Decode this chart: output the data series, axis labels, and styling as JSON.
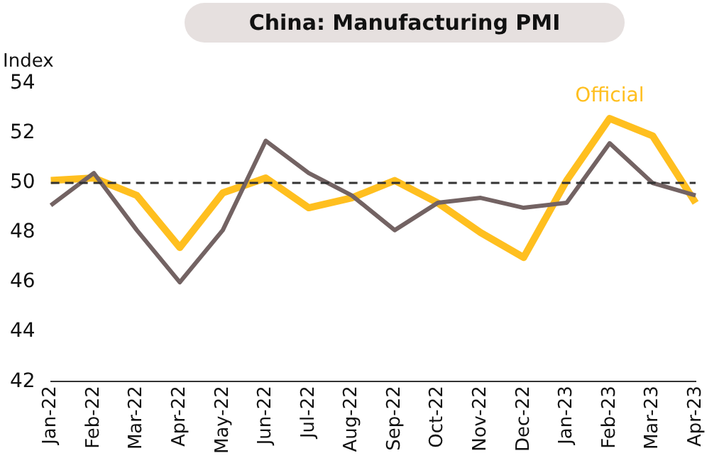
{
  "chart_data": {
    "type": "line",
    "title": "China: Manufacturing PMI",
    "ylabel": "Index",
    "categories": [
      "Jan-22",
      "Feb-22",
      "Mar-22",
      "Apr-22",
      "May-22",
      "Jun-22",
      "Jul-22",
      "Aug-22",
      "Sep-22",
      "Oct-22",
      "Nov-22",
      "Dec-22",
      "Jan-23",
      "Feb-23",
      "Mar-23",
      "Apr-23"
    ],
    "series": [
      {
        "name": "Official",
        "color": "#ffbf1f",
        "values": [
          50.1,
          50.2,
          49.5,
          47.4,
          49.6,
          50.2,
          49.0,
          49.4,
          50.1,
          49.2,
          48.0,
          47.0,
          50.1,
          52.6,
          51.9,
          49.2
        ]
      },
      {
        "color": "#736363",
        "values": [
          49.1,
          50.4,
          48.1,
          46.0,
          48.1,
          51.7,
          50.4,
          49.5,
          48.1,
          49.2,
          49.4,
          49.0,
          49.2,
          51.6,
          50.0,
          49.5
        ]
      }
    ],
    "ylim": [
      42,
      54
    ],
    "yticks": [
      42,
      44,
      46,
      48,
      50,
      52,
      54
    ],
    "grid": false,
    "legend": false,
    "marker": "none",
    "ref_lines": [
      {
        "axis": "y",
        "value": 50,
        "color": "#333333",
        "line_style": "dashed"
      }
    ]
  }
}
